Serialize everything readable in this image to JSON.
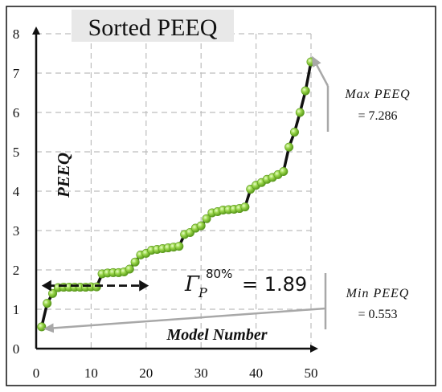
{
  "chart_data": {
    "type": "scatter",
    "title": "Sorted PEEQ",
    "xlabel": "Model Number",
    "ylabel": "PEEQ",
    "xlim": [
      0,
      50
    ],
    "ylim": [
      0,
      8
    ],
    "xticks": [
      0,
      10,
      20,
      30,
      40,
      50
    ],
    "yticks": [
      0,
      1,
      2,
      3,
      4,
      5,
      6,
      7,
      8
    ],
    "grid": true,
    "x": [
      1,
      2,
      3,
      4,
      5,
      6,
      7,
      8,
      9,
      10,
      11,
      12,
      13,
      14,
      15,
      16,
      17,
      18,
      19,
      20,
      21,
      22,
      23,
      24,
      25,
      26,
      27,
      28,
      29,
      30,
      31,
      32,
      33,
      34,
      35,
      36,
      37,
      38,
      39,
      40,
      41,
      42,
      43,
      44,
      45,
      46,
      47,
      48,
      49,
      50
    ],
    "values": [
      0.553,
      1.15,
      1.4,
      1.55,
      1.56,
      1.56,
      1.56,
      1.56,
      1.56,
      1.57,
      1.57,
      1.9,
      1.92,
      1.93,
      1.93,
      1.95,
      2.02,
      2.2,
      2.38,
      2.42,
      2.5,
      2.52,
      2.54,
      2.56,
      2.58,
      2.6,
      2.9,
      2.95,
      3.06,
      3.12,
      3.3,
      3.45,
      3.48,
      3.52,
      3.53,
      3.54,
      3.56,
      3.6,
      4.05,
      4.15,
      4.22,
      4.3,
      4.35,
      4.42,
      4.5,
      5.12,
      5.5,
      6.0,
      6.55,
      7.286
    ],
    "annotations": {
      "threshold_label": "= 1.89",
      "gamma_symbol": "Γ",
      "gamma_sub": "P",
      "gamma_sup": "80%",
      "threshold_value": 1.89,
      "max_label": "Max PEEQ",
      "max_value": "= 7.286",
      "min_label": "Min PEEQ",
      "min_value": "= 0.553"
    },
    "colors": {
      "curve": "#111111",
      "marker": "#8ccf3c",
      "marker_edge": "#5c9a1e",
      "grid": "#bdbdbd",
      "arrow_gray": "#a8a8a8"
    }
  }
}
